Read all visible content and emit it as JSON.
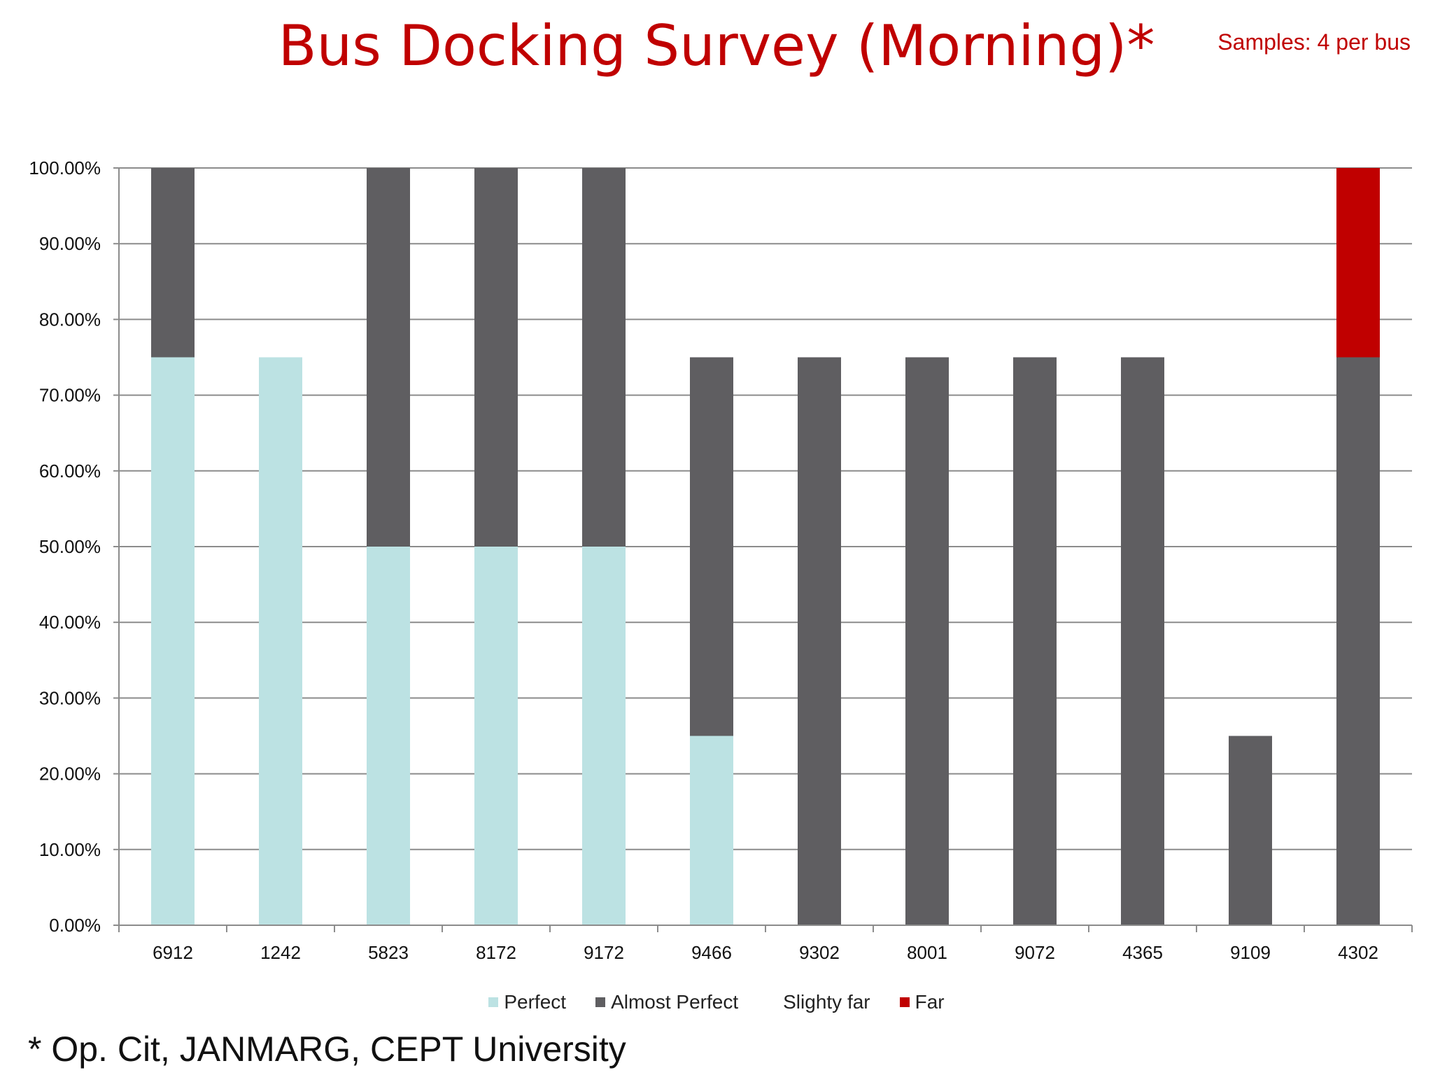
{
  "title": "Bus Docking Survey (Morning)*",
  "samples_note": "Samples: 4 per bus",
  "footnote": "* Op. Cit, JANMARG, CEPT University",
  "chart_data": {
    "type": "bar",
    "stacked": true,
    "categories": [
      "6912",
      "1242",
      "5823",
      "8172",
      "9172",
      "9466",
      "9302",
      "8001",
      "9072",
      "4365",
      "9109",
      "4302"
    ],
    "series": [
      {
        "name": "Perfect",
        "color": "#bce2e3",
        "values": [
          75,
          75,
          50,
          50,
          50,
          25,
          0,
          0,
          0,
          0,
          0,
          0
        ]
      },
      {
        "name": "Almost Perfect",
        "color": "#5f5e61",
        "values": [
          25,
          0,
          50,
          50,
          50,
          50,
          75,
          75,
          75,
          75,
          25,
          75
        ]
      },
      {
        "name": "Slighty far",
        "color": "#ffffff",
        "values": [
          0,
          0,
          0,
          0,
          0,
          0,
          0,
          0,
          0,
          0,
          0,
          0
        ]
      },
      {
        "name": "Far",
        "color": "#c00000",
        "values": [
          0,
          0,
          0,
          0,
          0,
          0,
          0,
          0,
          0,
          0,
          0,
          25
        ]
      }
    ],
    "y_ticks": [
      "0.00%",
      "10.00%",
      "20.00%",
      "30.00%",
      "40.00%",
      "50.00%",
      "60.00%",
      "70.00%",
      "80.00%",
      "90.00%",
      "100.00%"
    ],
    "ylim": [
      0,
      100
    ],
    "grid": true,
    "legend_position": "bottom"
  }
}
